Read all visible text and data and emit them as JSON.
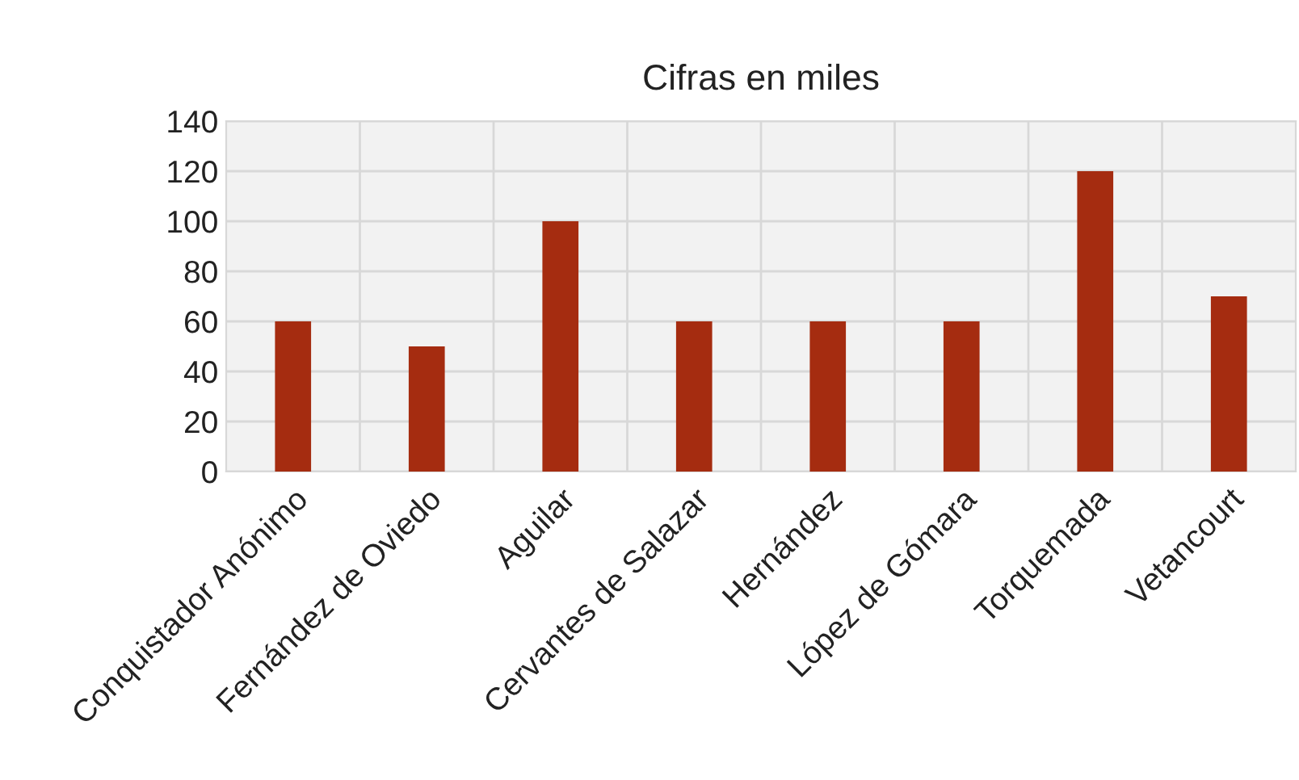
{
  "chart_data": {
    "type": "bar",
    "title": "Cifras en miles",
    "categories": [
      "Conquistador Anónimo",
      "Fernández de Oviedo",
      "Aguilar",
      "Cervantes de Salazar",
      "Hernández",
      "López de Gómara",
      "Torquemada",
      "Vetancourt"
    ],
    "values": [
      60,
      50,
      100,
      60,
      60,
      60,
      120,
      70
    ],
    "color": "#a52c10",
    "ylim": [
      0,
      140
    ],
    "yticks": [
      0,
      20,
      40,
      60,
      80,
      100,
      120,
      140
    ],
    "grid": true
  }
}
